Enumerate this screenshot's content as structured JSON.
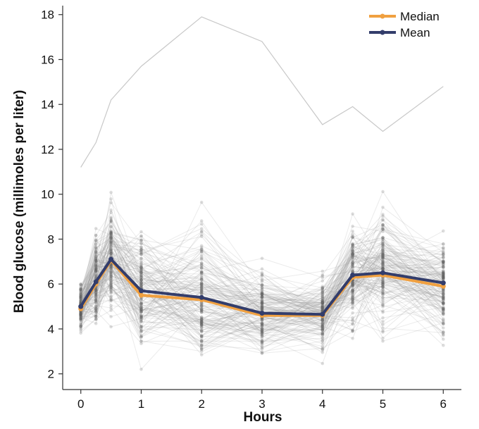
{
  "chart_data": {
    "type": "line",
    "xlabel": "Hours",
    "ylabel": "Blood glucose (millimoles per liter)",
    "xlim": [
      -0.3,
      6.3
    ],
    "ylim": [
      1.3,
      18.4
    ],
    "xticks": [
      0,
      1,
      2,
      3,
      4,
      5,
      6
    ],
    "yticks": [
      2,
      4,
      6,
      8,
      10,
      12,
      14,
      16,
      18
    ],
    "x": [
      0,
      0.25,
      0.5,
      1,
      2,
      3,
      4,
      4.5,
      5,
      6
    ],
    "series": [
      {
        "name": "Median",
        "color": "#f0a040",
        "values": [
          4.9,
          6.0,
          7.05,
          5.5,
          5.3,
          4.6,
          4.6,
          6.3,
          6.4,
          5.9
        ]
      },
      {
        "name": "Mean",
        "color": "#333d6b",
        "values": [
          5.0,
          6.1,
          7.1,
          5.7,
          5.4,
          4.7,
          4.65,
          6.4,
          6.5,
          6.05
        ]
      }
    ],
    "individual_traces_color": "#9a9a9a",
    "individual_traces_example_max": [
      11.2,
      12.3,
      14.2,
      15.7,
      17.9,
      16.8,
      13.1,
      13.9,
      12.8,
      14.8
    ],
    "legend_position": "top-right",
    "grid": false
  }
}
